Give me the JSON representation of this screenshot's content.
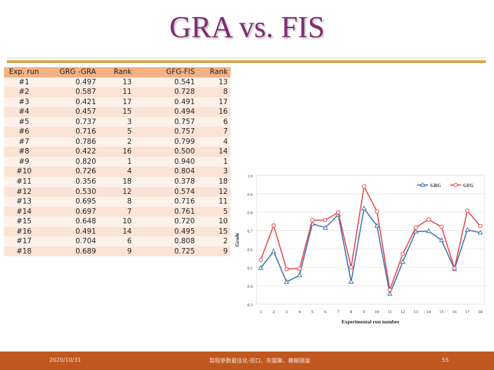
{
  "slide": {
    "title": "GRA vs. FIS",
    "footer_date": "2020/10/31",
    "footer_course": "製程參數最佳化-田口、灰關聯、模糊理論",
    "page_number": "55"
  },
  "table": {
    "headers": [
      "Exp. run",
      "GRG -GRA",
      "Rank",
      "GFG-FIS",
      "Rank"
    ],
    "rows": [
      [
        "#1",
        "0.497",
        "13",
        "0.541",
        "13"
      ],
      [
        "#2",
        "0.587",
        "11",
        "0.728",
        "8"
      ],
      [
        "#3",
        "0.421",
        "17",
        "0.491",
        "17"
      ],
      [
        "#4",
        "0.457",
        "15",
        "0.494",
        "16"
      ],
      [
        "#5",
        "0.737",
        "3",
        "0.757",
        "6"
      ],
      [
        "#6",
        "0.716",
        "5",
        "0.757",
        "7"
      ],
      [
        "#7",
        "0.786",
        "2",
        "0.799",
        "4"
      ],
      [
        "#8",
        "0.422",
        "16",
        "0.500",
        "14"
      ],
      [
        "#9",
        "0.820",
        "1",
        "0.940",
        "1"
      ],
      [
        "#10",
        "0.726",
        "4",
        "0.804",
        "3"
      ],
      [
        "#11",
        "0.356",
        "18",
        "0.378",
        "18"
      ],
      [
        "#12",
        "0.530",
        "12",
        "0.574",
        "12"
      ],
      [
        "#13",
        "0.695",
        "8",
        "0.716",
        "11"
      ],
      [
        "#14",
        "0.697",
        "7",
        "0.761",
        "5"
      ],
      [
        "#15",
        "0.648",
        "10",
        "0.720",
        "10"
      ],
      [
        "#16",
        "0.491",
        "14",
        "0.495",
        "15"
      ],
      [
        "#17",
        "0.704",
        "6",
        "0.808",
        "2"
      ],
      [
        "#18",
        "0.689",
        "9",
        "0.725",
        "9"
      ]
    ]
  },
  "chart_data": {
    "type": "line",
    "x": [
      1,
      2,
      3,
      4,
      5,
      6,
      7,
      8,
      9,
      10,
      11,
      12,
      13,
      14,
      15,
      16,
      17,
      18
    ],
    "series": [
      {
        "name": "GRG",
        "color": "#3f72af",
        "marker": "triangle",
        "values": [
          0.497,
          0.587,
          0.421,
          0.457,
          0.737,
          0.716,
          0.786,
          0.422,
          0.82,
          0.726,
          0.356,
          0.53,
          0.695,
          0.697,
          0.648,
          0.491,
          0.704,
          0.689
        ]
      },
      {
        "name": "GFG",
        "color": "#e8474c",
        "marker": "circle",
        "values": [
          0.541,
          0.728,
          0.491,
          0.494,
          0.757,
          0.757,
          0.799,
          0.5,
          0.94,
          0.804,
          0.378,
          0.574,
          0.716,
          0.761,
          0.72,
          0.495,
          0.808,
          0.725
        ]
      }
    ],
    "xlabel": "Experimental run number",
    "ylabel": "Grade",
    "ylim": [
      0.3,
      1.0
    ],
    "yticks": [
      "0.3",
      "0.4",
      "0.5",
      "0.6",
      "0.7",
      "0.8",
      "0.9",
      "1.0"
    ],
    "grid": "horizontal",
    "legend": "top-right"
  }
}
